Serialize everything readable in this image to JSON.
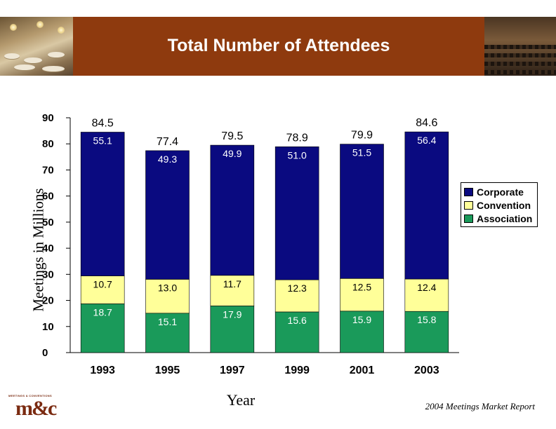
{
  "header": {
    "title": "Total Number of Attendees"
  },
  "footer": {
    "report": "2004 Meetings Market Report",
    "logo_text": "m&c",
    "logo_caption": "MEETINGS & CONVENTIONS"
  },
  "chart_data": {
    "type": "bar",
    "stacked": true,
    "title": "Total Number of Attendees",
    "xlabel": "Year",
    "ylabel": "Meetings in Millions",
    "categories": [
      "1993",
      "1995",
      "1997",
      "1999",
      "2001",
      "2003"
    ],
    "ylim": [
      0,
      90
    ],
    "yticks": [
      0,
      10,
      20,
      30,
      40,
      50,
      60,
      70,
      80,
      90
    ],
    "grid": false,
    "legend_position": "right",
    "series": [
      {
        "name": "Association",
        "color": "#1a9a5a",
        "values": [
          18.7,
          15.1,
          17.9,
          15.6,
          15.9,
          15.8
        ],
        "labels": [
          "18.7",
          "15.1",
          "17.9",
          "15.6",
          "15.9",
          "15.8"
        ]
      },
      {
        "name": "Convention",
        "color": "#ffff99",
        "values": [
          10.7,
          13.0,
          11.7,
          12.3,
          12.5,
          12.4
        ],
        "labels": [
          "10.7",
          "13.0",
          "11.7",
          "12.3",
          "12.5",
          "12.4"
        ]
      },
      {
        "name": "Corporate",
        "color": "#0a0a80",
        "values": [
          55.1,
          49.3,
          49.9,
          51.0,
          51.5,
          56.4
        ],
        "labels": [
          "55.1",
          "49.3",
          "49.9",
          "51.0",
          "51.5",
          "56.4"
        ]
      }
    ],
    "totals": [
      84.5,
      77.4,
      79.5,
      78.9,
      79.9,
      84.6
    ],
    "total_labels": [
      "84.5",
      "77.4",
      "79.5",
      "78.9",
      "79.9",
      "84.6"
    ],
    "legend": [
      "Corporate",
      "Convention",
      "Association"
    ]
  }
}
